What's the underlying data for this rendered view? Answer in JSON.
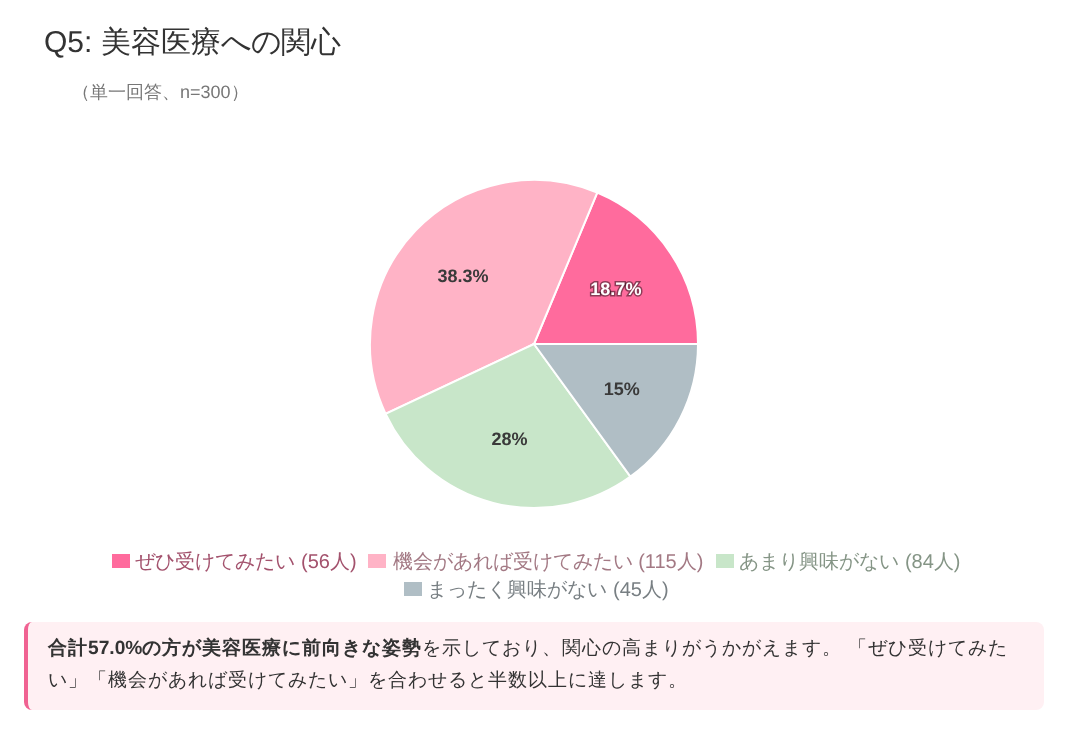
{
  "chart_data": {
    "type": "pie",
    "title": "Q5: 美容医療への関心",
    "subtitle": "（単一回答、n=300）",
    "categories": [
      "ぜひ受けてみたい (56人)",
      "機会があれば受けてみたい (115人)",
      "あまり興味がない (84人)",
      "まったく興味がない (45人)"
    ],
    "values": [
      18.7,
      38.3,
      28,
      15
    ],
    "value_labels": [
      "18.7%",
      "38.3%",
      "28%",
      "15%"
    ],
    "colors": [
      "#ff6b9d",
      "#ffb3c6",
      "#c8e6c9",
      "#b0bec5"
    ],
    "legend": "bottom",
    "annotations": [
      "合計57.0%の方が美容医療に前向きな姿勢",
      "を示しており、関心の高まりがうかがえます。 「ぜひ受けてみたい」「機会があれば受けてみたい」を合わせると半数以上に達します。"
    ]
  }
}
